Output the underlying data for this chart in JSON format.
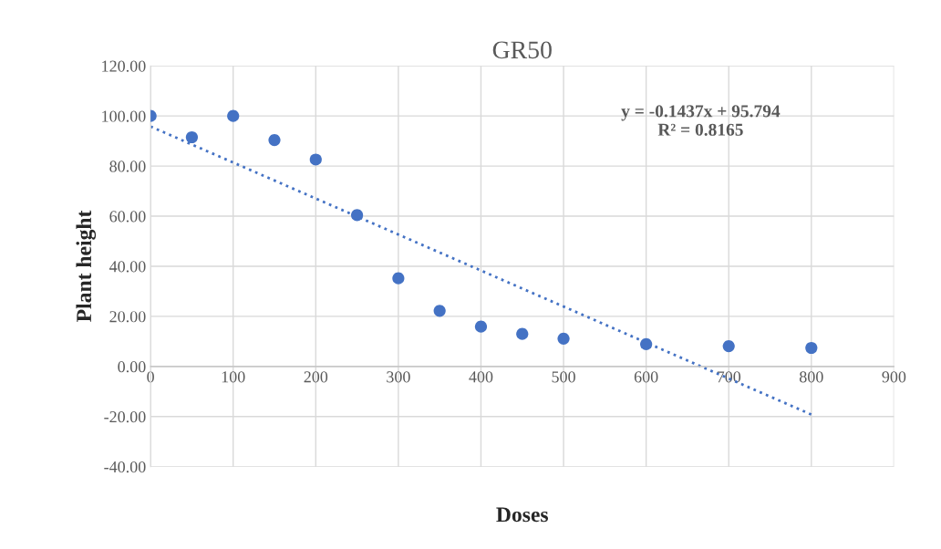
{
  "chart_data": {
    "type": "scatter",
    "title": "GR50",
    "xlabel": "Doses",
    "ylabel": "Plant height",
    "series": [
      {
        "color": "#4472c4",
        "marker": "circle",
        "x": [
          0,
          50,
          100,
          150,
          200,
          250,
          300,
          350,
          400,
          450,
          500,
          600,
          700,
          800
        ],
        "values": [
          100,
          91.5,
          100,
          90.4,
          82.6,
          60.4,
          35.2,
          22.2,
          15.9,
          13,
          11.1,
          8.9,
          8.1,
          7.4
        ]
      },
      {
        "type": "line",
        "color": "#4472c4",
        "line_style": "dotted",
        "marker": "none",
        "x": [
          0,
          800
        ],
        "values": [
          95.8,
          -19.2
        ]
      }
    ],
    "annotations": [
      {
        "text": "y = -0.1437x + 95.794\nR² = 0.8165"
      }
    ],
    "grid": true,
    "legend": false,
    "xlim": [
      0,
      900
    ],
    "xticks": [
      0,
      100,
      200,
      300,
      400,
      500,
      600,
      700,
      800,
      900
    ],
    "ylim": [
      -40,
      120
    ],
    "yticks": [
      {
        "value": -40,
        "label": "-40.00"
      },
      {
        "value": -20,
        "label": "-20.00"
      },
      {
        "value": 0,
        "label": "0.00"
      },
      {
        "value": 20,
        "label": "20.00"
      },
      {
        "value": 40,
        "label": "40.00"
      },
      {
        "value": 60,
        "label": "60.00"
      },
      {
        "value": 80,
        "label": "80.00"
      },
      {
        "value": 100,
        "label": "100.00"
      },
      {
        "value": 120,
        "label": "120.00"
      }
    ]
  }
}
